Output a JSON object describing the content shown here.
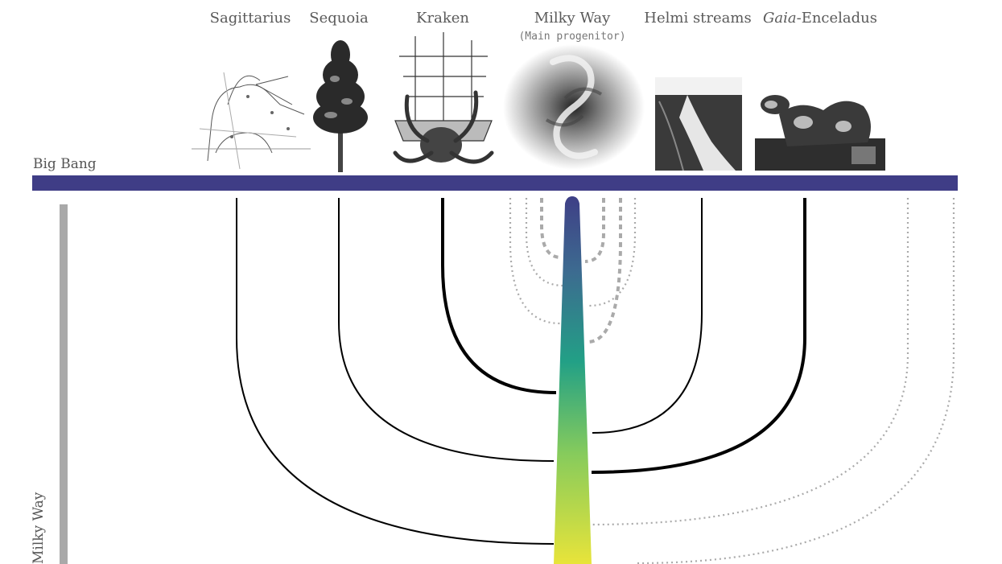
{
  "header": {
    "origin_label": "Big Bang",
    "axis_label": "Milky Way"
  },
  "components": [
    {
      "id": "sagittarius",
      "label": "Sagittarius",
      "label_italic_prefix": "",
      "sublabel": ""
    },
    {
      "id": "sequoia",
      "label": "Sequoia",
      "label_italic_prefix": "",
      "sublabel": ""
    },
    {
      "id": "kraken",
      "label": "Kraken",
      "label_italic_prefix": "",
      "sublabel": ""
    },
    {
      "id": "milky-way",
      "label": "Milky Way",
      "label_italic_prefix": "",
      "sublabel": "(Main progenitor)"
    },
    {
      "id": "helmi",
      "label": "Helmi streams",
      "label_italic_prefix": "",
      "sublabel": ""
    },
    {
      "id": "gaia-enceladus",
      "label": "-Enceladus",
      "label_italic_prefix": "Gaia",
      "sublabel": ""
    }
  ],
  "colors": {
    "timeline_bar": "#3f3d86",
    "trunk_top": "#3e4a8a",
    "trunk_mid": "#2a9a8a",
    "trunk_low": "#8fce5a",
    "trunk_bottom": "#e6e43a",
    "merger_line": "#000000",
    "unknown_line": "#aaaaaa"
  }
}
